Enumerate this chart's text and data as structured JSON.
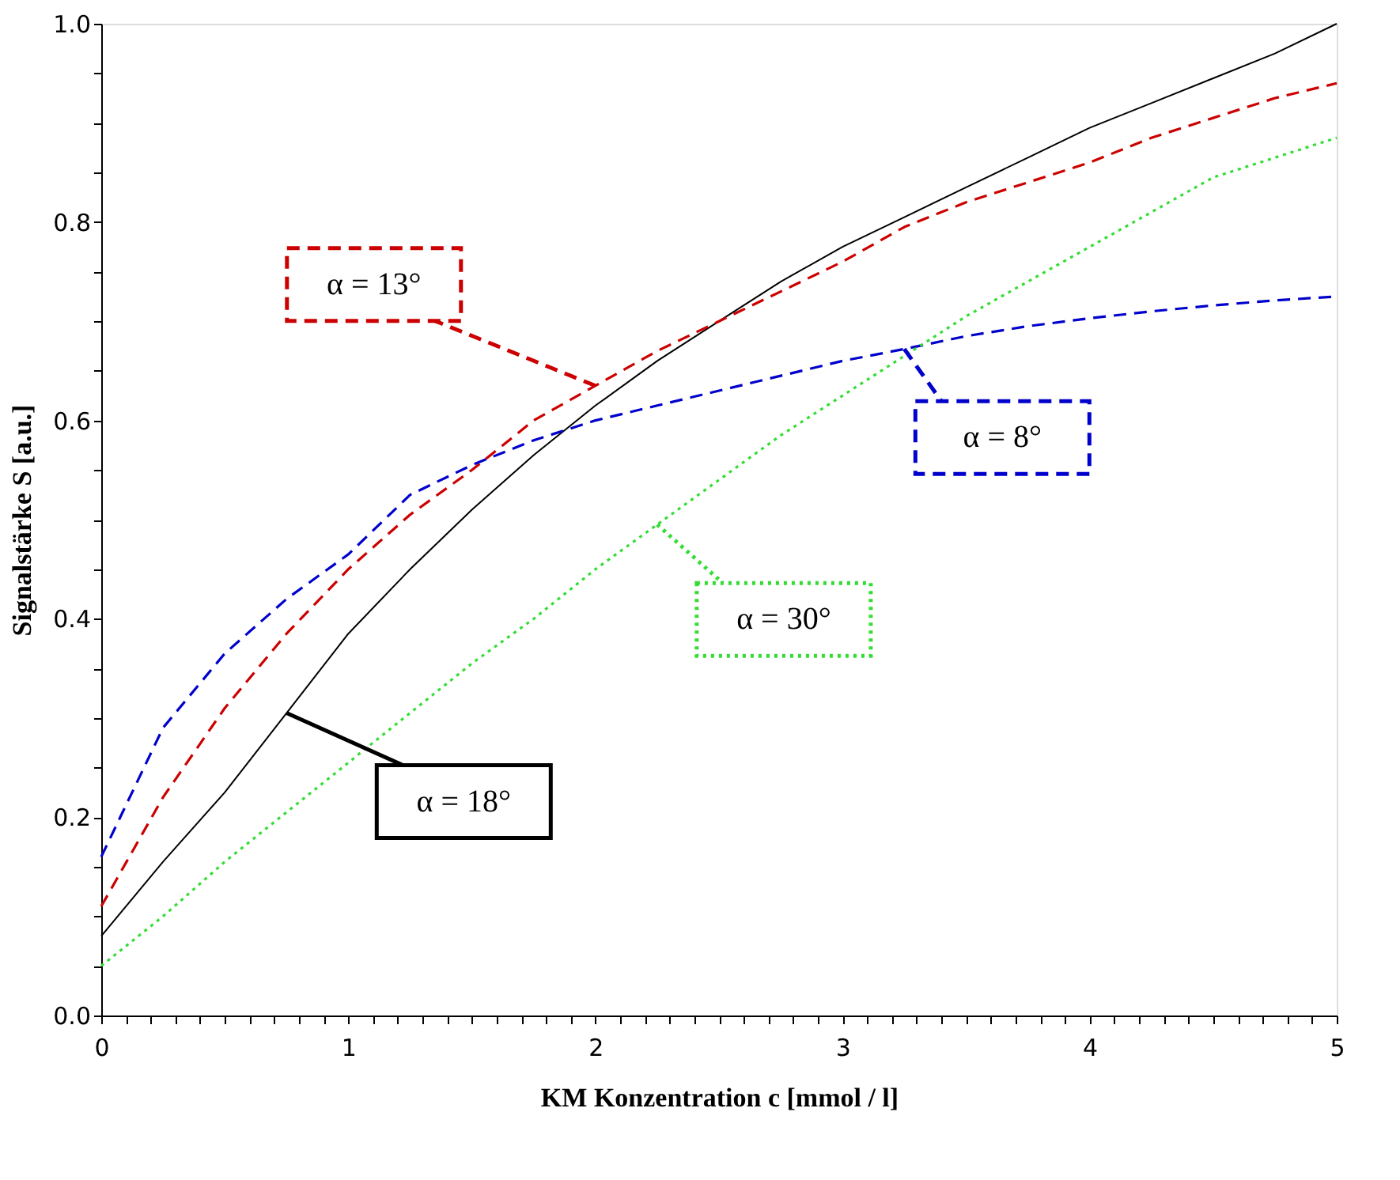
{
  "chart_data": {
    "type": "line",
    "xlabel": "KM Konzentration  c  [mmol / l]",
    "ylabel": "Signalstärke  S  [a.u.]",
    "x": [
      0,
      0.25,
      0.5,
      0.75,
      1,
      1.25,
      1.5,
      1.75,
      2,
      2.25,
      2.5,
      2.75,
      3,
      3.25,
      3.5,
      3.75,
      4,
      4.25,
      4.5,
      4.75,
      5
    ],
    "series": [
      {
        "color": "#000000",
        "line_style": "solid",
        "values": [
          0.08,
          0.155,
          0.225,
          0.305,
          0.385,
          0.45,
          0.51,
          0.565,
          0.615,
          0.66,
          0.7,
          0.74,
          0.775,
          0.805,
          0.835,
          0.865,
          0.895,
          0.92,
          0.945,
          0.97,
          1.0
        ]
      },
      {
        "color": "#cc0000",
        "line_style": "dashed",
        "values": [
          0.11,
          0.22,
          0.31,
          0.385,
          0.45,
          0.505,
          0.55,
          0.6,
          0.635,
          0.67,
          0.7,
          0.73,
          0.76,
          0.795,
          0.82,
          0.84,
          0.86,
          0.885,
          0.905,
          0.925,
          0.94
        ]
      },
      {
        "color": "#0000cc",
        "line_style": "dashed",
        "values": [
          0.16,
          0.29,
          0.365,
          0.42,
          0.465,
          0.525,
          0.555,
          0.58,
          0.6,
          0.615,
          0.63,
          0.645,
          0.66,
          0.672,
          0.685,
          0.695,
          0.703,
          0.71,
          0.716,
          0.721,
          0.725
        ]
      },
      {
        "color": "#33dd33",
        "line_style": "dotted",
        "values": [
          0.05,
          0.1,
          0.155,
          0.205,
          0.255,
          0.305,
          0.355,
          0.4,
          0.45,
          0.495,
          0.54,
          0.585,
          0.625,
          0.665,
          0.705,
          0.74,
          0.775,
          0.81,
          0.845,
          0.865,
          0.885
        ]
      }
    ],
    "annotations": [
      {
        "text": "α = 18°",
        "x": 0.75,
        "y": 0.305
      },
      {
        "text": "α = 13°",
        "x": 2,
        "y": 0.635
      },
      {
        "text": "α = 8°",
        "x": 3.25,
        "y": 0.672
      },
      {
        "text": "α = 30°",
        "x": 2.25,
        "y": 0.495
      }
    ],
    "xlim": [
      0,
      5
    ],
    "ylim": [
      0,
      1.0
    ],
    "xticks": [
      0,
      {
        "value": 0.1,
        "label": null
      },
      {
        "value": 0.2,
        "label": null
      },
      {
        "value": 0.3,
        "label": null
      },
      {
        "value": 0.4,
        "label": null
      },
      {
        "value": 0.5,
        "label": null
      },
      {
        "value": 0.6,
        "label": null
      },
      {
        "value": 0.7,
        "label": null
      },
      {
        "value": 0.8,
        "label": null
      },
      {
        "value": 0.9,
        "label": null
      },
      1,
      {
        "value": 1.1,
        "label": null
      },
      {
        "value": 1.2,
        "label": null
      },
      {
        "value": 1.3,
        "label": null
      },
      {
        "value": 1.4,
        "label": null
      },
      {
        "value": 1.5,
        "label": null
      },
      {
        "value": 1.6,
        "label": null
      },
      {
        "value": 1.7,
        "label": null
      },
      {
        "value": 1.8,
        "label": null
      },
      {
        "value": 1.9,
        "label": null
      },
      2,
      {
        "value": 2.1,
        "label": null
      },
      {
        "value": 2.2,
        "label": null
      },
      {
        "value": 2.3,
        "label": null
      },
      {
        "value": 2.4,
        "label": null
      },
      {
        "value": 2.5,
        "label": null
      },
      {
        "value": 2.6,
        "label": null
      },
      {
        "value": 2.7,
        "label": null
      },
      {
        "value": 2.8,
        "label": null
      },
      {
        "value": 2.9,
        "label": null
      },
      3,
      {
        "value": 3.1,
        "label": null
      },
      {
        "value": 3.2,
        "label": null
      },
      {
        "value": 3.3,
        "label": null
      },
      {
        "value": 3.4,
        "label": null
      },
      {
        "value": 3.5,
        "label": null
      },
      {
        "value": 3.6,
        "label": null
      },
      {
        "value": 3.7,
        "label": null
      },
      {
        "value": 3.8,
        "label": null
      },
      {
        "value": 3.9,
        "label": null
      },
      4,
      {
        "value": 4.1,
        "label": null
      },
      {
        "value": 4.2,
        "label": null
      },
      {
        "value": 4.3,
        "label": null
      },
      {
        "value": 4.4,
        "label": null
      },
      {
        "value": 4.5,
        "label": null
      },
      {
        "value": 4.6,
        "label": null
      },
      {
        "value": 4.7,
        "label": null
      },
      {
        "value": 4.8,
        "label": null
      },
      {
        "value": 4.9,
        "label": null
      },
      5
    ],
    "yticks": [
      {
        "value": 0,
        "label": "0.0"
      },
      {
        "value": 0.05,
        "label": null
      },
      {
        "value": 0.1,
        "label": null
      },
      {
        "value": 0.15,
        "label": null
      },
      {
        "value": 0.2,
        "label": "0.2"
      },
      {
        "value": 0.25,
        "label": null
      },
      {
        "value": 0.3,
        "label": null
      },
      {
        "value": 0.35,
        "label": null
      },
      {
        "value": 0.4,
        "label": "0.4"
      },
      {
        "value": 0.45,
        "label": null
      },
      {
        "value": 0.5,
        "label": null
      },
      {
        "value": 0.55,
        "label": null
      },
      {
        "value": 0.6,
        "label": "0.6"
      },
      {
        "value": 0.65,
        "label": null
      },
      {
        "value": 0.7,
        "label": null
      },
      {
        "value": 0.75,
        "label": null
      },
      {
        "value": 0.8,
        "label": "0.8"
      },
      {
        "value": 0.85,
        "label": null
      },
      {
        "value": 0.9,
        "label": null
      },
      {
        "value": 0.95,
        "label": null
      },
      {
        "value": 1.0,
        "label": "1.0"
      }
    ],
    "grid": false
  }
}
